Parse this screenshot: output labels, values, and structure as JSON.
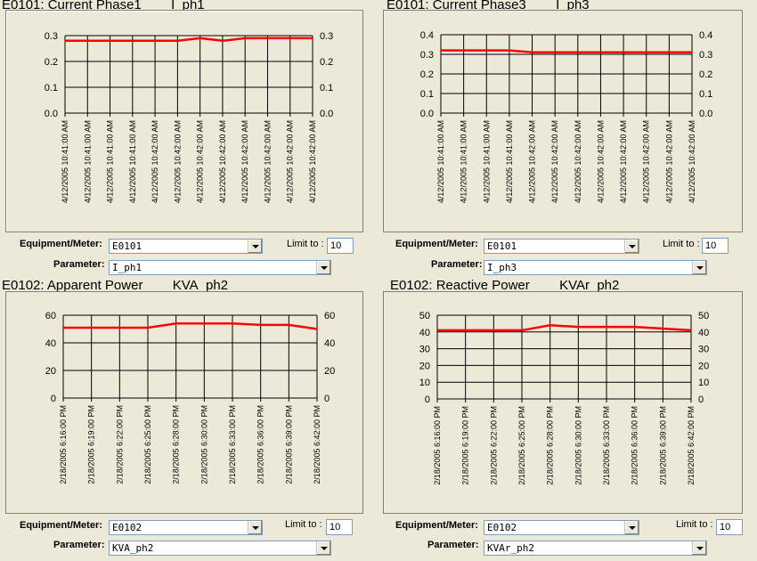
{
  "labels": {
    "equipment": "Equipment/Meter:",
    "parameter": "Parameter:",
    "limit": "Limit to :"
  },
  "panels": [
    {
      "title": "E0101: Current Phase1        I_ph1",
      "equipment": "E0101",
      "parameter": "I_ph1",
      "limit": "10"
    },
    {
      "title": "E0101: Current Phase3        I_ph3",
      "equipment": "E0101",
      "parameter": "I_ph3",
      "limit": "10"
    },
    {
      "title": "E0102: Apparent Power        KVA_ph2",
      "equipment": "E0102",
      "parameter": "KVA_ph2",
      "limit": "10"
    },
    {
      "title": "E0102: Reactive Power        KVAr_ph2",
      "equipment": "E0102",
      "parameter": "KVAr_ph2",
      "limit": "10"
    }
  ],
  "colors": {
    "line": "#ff0000",
    "grid": "#000000",
    "background": "#ece9d8"
  },
  "chart_data": [
    {
      "type": "line",
      "ylim": [
        0,
        0.3
      ],
      "yticks": [
        "0.0",
        "0.1",
        "0.2",
        "0.3"
      ],
      "categories": [
        "4/12/2005 10:41:00 AM",
        "4/12/2005 10:41:00 AM",
        "4/12/2005 10:41:00 AM",
        "4/12/2005 10:41:00 AM",
        "4/12/2005 10:42:00 AM",
        "4/12/2005 10:42:00 AM",
        "4/12/2005 10:42:00 AM",
        "4/12/2005 10:42:00 AM",
        "4/12/2005 10:42:00 AM",
        "4/12/2005 10:42:00 AM",
        "4/12/2005 10:42:00 AM",
        "4/12/2005 10:42:00 AM"
      ],
      "values": [
        0.28,
        0.28,
        0.28,
        0.28,
        0.28,
        0.28,
        0.29,
        0.28,
        0.29,
        0.29,
        0.29,
        0.29
      ]
    },
    {
      "type": "line",
      "ylim": [
        0,
        0.4
      ],
      "yticks": [
        "0.0",
        "0.1",
        "0.2",
        "0.3",
        "0.4"
      ],
      "categories": [
        "4/12/2005 10:41:00 AM",
        "4/12/2005 10:41:00 AM",
        "4/12/2005 10:41:00 AM",
        "4/12/2005 10:41:00 AM",
        "4/12/2005 10:42:00 AM",
        "4/12/2005 10:42:00 AM",
        "4/12/2005 10:42:00 AM",
        "4/12/2005 10:42:00 AM",
        "4/12/2005 10:42:00 AM",
        "4/12/2005 10:42:00 AM",
        "4/12/2005 10:42:00 AM",
        "4/12/2005 10:42:00 AM"
      ],
      "values": [
        0.32,
        0.32,
        0.32,
        0.32,
        0.31,
        0.31,
        0.31,
        0.31,
        0.31,
        0.31,
        0.31,
        0.31
      ]
    },
    {
      "type": "line",
      "ylim": [
        0,
        60
      ],
      "yticks": [
        "0",
        "20",
        "40",
        "60"
      ],
      "categories": [
        "2/18/2005 6:16:00 PM",
        "2/18/2005 6:19:00 PM",
        "2/18/2005 6:22:00 PM",
        "2/18/2005 6:25:00 PM",
        "2/18/2005 6:28:00 PM",
        "2/18/2005 6:30:00 PM",
        "2/18/2005 6:33:00 PM",
        "2/18/2005 6:36:00 PM",
        "2/18/2005 6:39:00 PM",
        "2/18/2005 6:42:00 PM"
      ],
      "values": [
        51,
        51,
        51,
        51,
        54,
        54,
        54,
        53,
        53,
        50
      ]
    },
    {
      "type": "line",
      "ylim": [
        0,
        50
      ],
      "yticks": [
        "0",
        "10",
        "20",
        "30",
        "40",
        "50"
      ],
      "categories": [
        "2/18/2005 6:16:00 PM",
        "2/18/2005 6:19:00 PM",
        "2/18/2005 6:22:00 PM",
        "2/18/2005 6:25:00 PM",
        "2/18/2005 6:28:00 PM",
        "2/18/2005 6:30:00 PM",
        "2/18/2005 6:33:00 PM",
        "2/18/2005 6:36:00 PM",
        "2/18/2005 6:39:00 PM",
        "2/18/2005 6:42:00 PM"
      ],
      "values": [
        41,
        41,
        41,
        41,
        44,
        43,
        43,
        43,
        42,
        41
      ]
    }
  ]
}
